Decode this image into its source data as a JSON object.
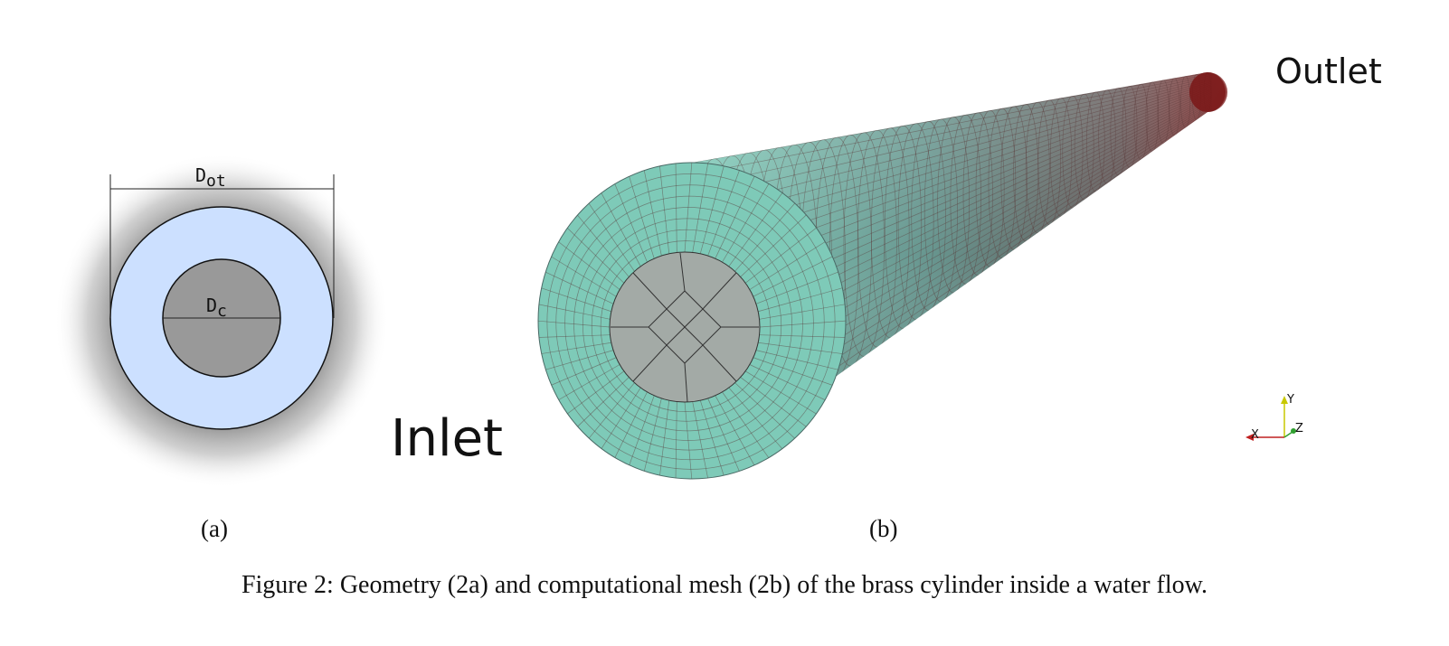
{
  "panel_a": {
    "outer_diameter_label": "D",
    "outer_diameter_sub": "ot",
    "inner_diameter_label": "D",
    "inner_diameter_sub": "c",
    "sub_caption": "(a)",
    "colors": {
      "annulus": "#cce0ff",
      "core": "#999999",
      "outline": "#111111"
    }
  },
  "panel_b": {
    "inlet_label": "Inlet",
    "outlet_label": "Outlet",
    "sub_caption": "(b)",
    "axes": {
      "x": "X",
      "y": "Y",
      "z": "Z"
    },
    "colors": {
      "mesh_face": "#7ecab8",
      "mesh_lines": "#5a3a3a",
      "outlet_end": "#7a1616",
      "core_face": "#a3aaa6"
    }
  },
  "caption": "Figure 2: Geometry (2a) and computational mesh (2b) of the brass cylinder inside a water flow."
}
